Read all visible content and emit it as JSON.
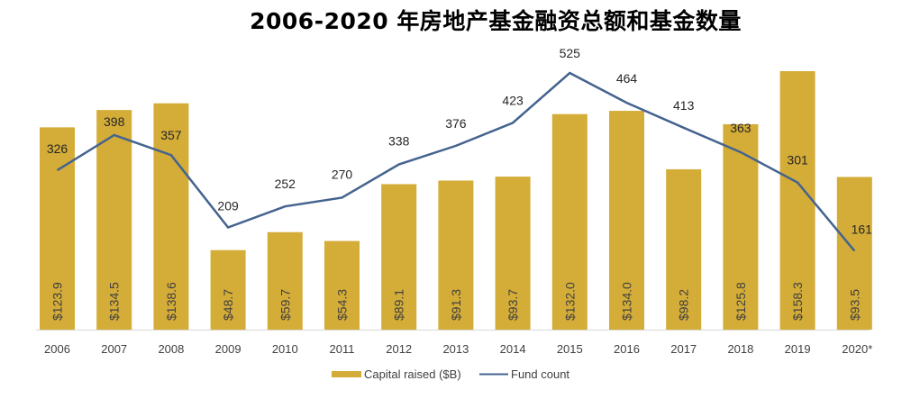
{
  "chart_data": {
    "type": "bar",
    "title": "2006-2020 年房地产基金融资总额和基金数量",
    "xlabel": "",
    "ylabel": "",
    "categories": [
      "2006",
      "2007",
      "2008",
      "2009",
      "2010",
      "2011",
      "2012",
      "2013",
      "2014",
      "2015",
      "2016",
      "2017",
      "2018",
      "2019",
      "2020*"
    ],
    "series": [
      {
        "name": "Capital raised ($B)",
        "type": "bar",
        "color": "#D4AC38",
        "values": [
          123.9,
          134.5,
          138.6,
          48.7,
          59.7,
          54.3,
          89.1,
          91.3,
          93.7,
          132.0,
          134.0,
          98.2,
          125.8,
          158.3,
          93.5
        ],
        "labels": [
          "$123.9",
          "$134.5",
          "$138.6",
          "$48.7",
          "$59.7",
          "$54.3",
          "$89.1",
          "$91.3",
          "$93.7",
          "$132.0",
          "$134.0",
          "$98.2",
          "$125.8",
          "$158.3",
          "$93.5"
        ]
      },
      {
        "name": "Fund count",
        "type": "line",
        "color": "#44638F",
        "values": [
          326,
          398,
          357,
          209,
          252,
          270,
          338,
          376,
          423,
          525,
          464,
          413,
          363,
          301,
          161
        ],
        "labels": [
          "326",
          "398",
          "357",
          "209",
          "252",
          "270",
          "338",
          "376",
          "423",
          "525",
          "464",
          "413",
          "363",
          "301",
          "161"
        ]
      }
    ],
    "ylim_bar": [
      0,
      160
    ],
    "ylim_line": [
      0,
      530
    ],
    "grid": false,
    "legend": "bottom-center"
  }
}
